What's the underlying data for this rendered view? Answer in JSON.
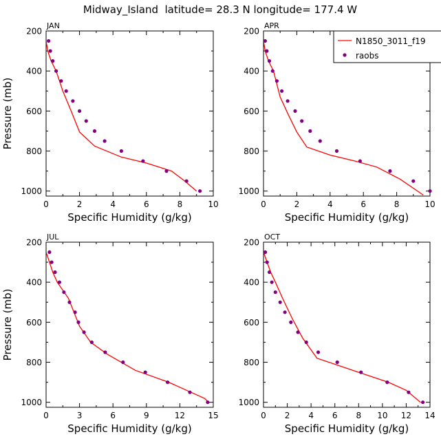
{
  "title": "Midway_Island  latitude= 28.3 N longitude= 177.4 W",
  "colors": {
    "model": "#ff0000",
    "obs": "#800080",
    "axis": "#000000"
  },
  "legend": {
    "model_label": "N1850_3011_f19",
    "obs_label": "raobs",
    "placement": "top-right of APR panel"
  },
  "chart_data": [
    {
      "type": "line",
      "panel": "JAN",
      "xlabel": "Specific Humidity (g/kg)",
      "ylabel": "Pressure (mb)",
      "xlim": [
        0,
        10
      ],
      "ylim": [
        200,
        1025
      ],
      "xticks": [
        "0",
        "2",
        "4",
        "6",
        "8",
        "10"
      ],
      "yticks": [
        "200",
        "400",
        "600",
        "800",
        "1000"
      ],
      "series": [
        {
          "name": "N1850_3011_f19",
          "style": "line",
          "x": [
            0.0,
            0.1,
            0.3,
            0.6,
            1.0,
            1.5,
            2.0,
            2.9,
            4.5,
            6.0,
            7.5,
            8.3,
            9.0
          ],
          "y": [
            250,
            300,
            350,
            400,
            500,
            600,
            705,
            775,
            830,
            860,
            900,
            950,
            1000
          ]
        },
        {
          "name": "raobs",
          "style": "marker",
          "x": [
            0.15,
            0.25,
            0.4,
            0.6,
            0.9,
            1.2,
            1.6,
            2.0,
            2.4,
            2.9,
            3.5,
            4.5,
            5.8,
            7.2,
            8.4,
            9.2
          ],
          "y": [
            250,
            300,
            350,
            400,
            450,
            500,
            550,
            600,
            650,
            700,
            750,
            800,
            850,
            900,
            950,
            1000
          ]
        }
      ]
    },
    {
      "type": "line",
      "panel": "APR",
      "xlabel": "Specific Humidity (g/kg)",
      "ylabel": "",
      "xlim": [
        0,
        10
      ],
      "ylim": [
        200,
        1025
      ],
      "xticks": [
        "0",
        "2",
        "4",
        "6",
        "8",
        "10"
      ],
      "yticks": [
        "200",
        "400",
        "600",
        "800",
        "1000"
      ],
      "series": [
        {
          "name": "N1850_3011_f19",
          "style": "line",
          "x": [
            0.0,
            0.1,
            0.3,
            0.6,
            1.0,
            1.5,
            2.0,
            2.6,
            4.0,
            5.5,
            6.8,
            8.2,
            9.6
          ],
          "y": [
            250,
            300,
            350,
            400,
            530,
            620,
            705,
            780,
            820,
            850,
            880,
            940,
            1020
          ]
        },
        {
          "name": "raobs",
          "style": "marker",
          "x": [
            0.1,
            0.2,
            0.35,
            0.55,
            0.8,
            1.1,
            1.45,
            1.9,
            2.3,
            2.8,
            3.4,
            4.4,
            5.8,
            7.6,
            9.0,
            10.0
          ],
          "y": [
            250,
            300,
            350,
            400,
            450,
            500,
            550,
            600,
            650,
            700,
            750,
            800,
            850,
            900,
            950,
            1000
          ]
        }
      ]
    },
    {
      "type": "line",
      "panel": "JUL",
      "xlabel": "Specific Humidity (g/kg)",
      "ylabel": "Pressure (mb)",
      "xlim": [
        0,
        15
      ],
      "ylim": [
        200,
        1025
      ],
      "xticks": [
        "0",
        "3",
        "6",
        "9",
        "12",
        "15"
      ],
      "yticks": [
        "200",
        "400",
        "600",
        "800",
        "1000"
      ],
      "series": [
        {
          "name": "N1850_3011_f19",
          "style": "line",
          "x": [
            0.0,
            0.3,
            0.6,
            1.0,
            2.0,
            2.5,
            3.0,
            4.0,
            5.5,
            8.0,
            11.0,
            13.0,
            14.2,
            14.6
          ],
          "y": [
            250,
            300,
            350,
            400,
            480,
            550,
            620,
            700,
            760,
            840,
            900,
            950,
            980,
            1000
          ]
        },
        {
          "name": "raobs",
          "style": "marker",
          "x": [
            0.3,
            0.5,
            0.8,
            1.2,
            1.6,
            2.1,
            2.6,
            2.9,
            3.4,
            4.1,
            5.3,
            6.9,
            8.9,
            10.9,
            12.9,
            14.5
          ],
          "y": [
            250,
            300,
            350,
            400,
            450,
            500,
            550,
            600,
            650,
            700,
            750,
            800,
            850,
            900,
            950,
            1000
          ]
        }
      ]
    },
    {
      "type": "line",
      "panel": "OCT",
      "xlabel": "Specific Humidity (g/kg)",
      "ylabel": "",
      "xlim": [
        0,
        14
      ],
      "ylim": [
        200,
        1025
      ],
      "xticks": [
        "0",
        "2",
        "4",
        "6",
        "8",
        "10",
        "12",
        "14"
      ],
      "yticks": [
        "200",
        "400",
        "600",
        "800",
        "1000"
      ],
      "series": [
        {
          "name": "N1850_3011_f19",
          "style": "line",
          "x": [
            0.0,
            0.3,
            0.6,
            1.0,
            1.6,
            2.4,
            3.3,
            4.5,
            6.5,
            8.5,
            10.5,
            12.0,
            13.2
          ],
          "y": [
            250,
            300,
            350,
            400,
            480,
            580,
            680,
            780,
            820,
            860,
            900,
            940,
            1000
          ]
        },
        {
          "name": "raobs",
          "style": "marker",
          "x": [
            0.15,
            0.3,
            0.5,
            0.7,
            1.0,
            1.4,
            1.8,
            2.3,
            2.9,
            3.6,
            4.6,
            6.2,
            8.2,
            10.4,
            12.2,
            13.4
          ],
          "y": [
            250,
            300,
            350,
            400,
            450,
            500,
            550,
            600,
            650,
            700,
            750,
            800,
            850,
            900,
            950,
            1000
          ]
        }
      ]
    }
  ]
}
